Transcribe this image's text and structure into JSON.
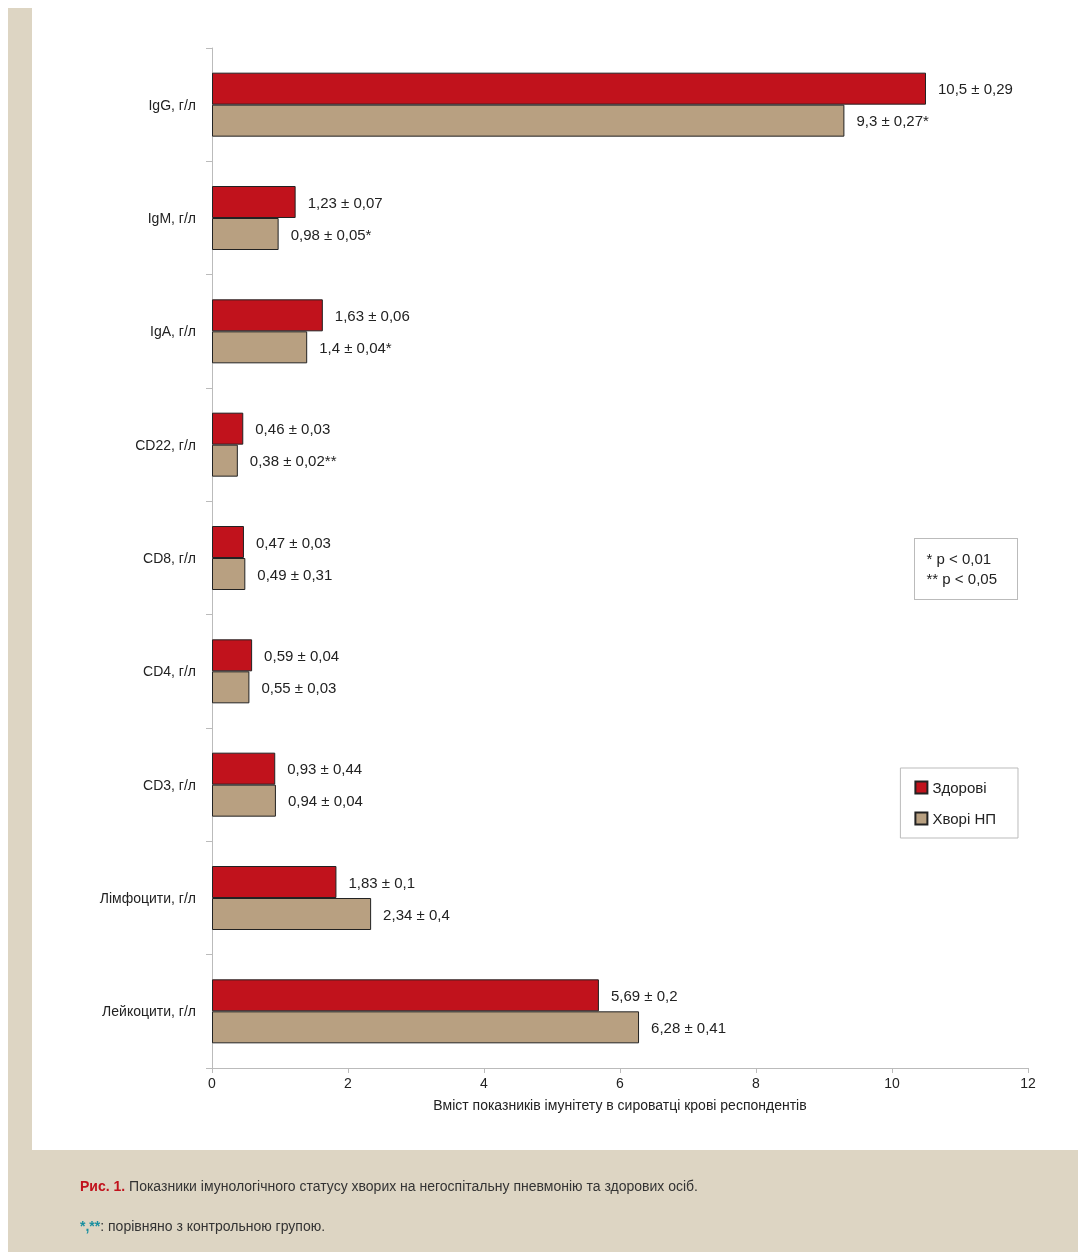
{
  "chart_data": {
    "type": "bar",
    "orientation": "horizontal",
    "categories": [
      "IgG, г/л",
      "IgM, г/л",
      "IgA, г/л",
      "CD22, г/л",
      "CD8, г/л",
      "CD4, г/л",
      "CD3, г/л",
      "Лімфоцити, г/л",
      "Лейкоцити, г/л"
    ],
    "series": [
      {
        "name": "Здорові",
        "color": "#c1121c",
        "values": [
          10.5,
          1.23,
          1.63,
          0.46,
          0.47,
          0.59,
          0.93,
          1.83,
          5.69
        ],
        "value_labels": [
          "10,5 ± 0,29",
          "1,23 ± 0,07",
          "1,63 ± 0,06",
          "0,46 ± 0,03",
          "0,47 ± 0,03",
          "0,59 ± 0,04",
          "0,93 ± 0,44",
          "1,83 ± 0,1",
          "5,69 ± 0,2"
        ]
      },
      {
        "name": "Хворі НП",
        "color": "#b8a081",
        "values": [
          9.3,
          0.98,
          1.4,
          0.38,
          0.49,
          0.55,
          0.94,
          2.34,
          6.28
        ],
        "value_labels": [
          "9,3 ± 0,27*",
          "0,98 ± 0,05*",
          "1,4 ± 0,04*",
          "0,38 ± 0,02**",
          "0,49 ± 0,31",
          "0,55 ± 0,03",
          "0,94 ± 0,04",
          "2,34 ± 0,4",
          "6,28 ± 0,41"
        ]
      }
    ],
    "xlabel": "Вміст показників імунітету в сироватці крові респондентів",
    "xlim": [
      0,
      12
    ],
    "xticks": [
      0,
      2,
      4,
      6,
      8,
      10,
      12
    ],
    "grid": false,
    "legend": "right",
    "annotations": [
      "* p < 0,01",
      "** p < 0,05",
      "Рис. 1.",
      "Показники імунологічного статусу хворих на негоспітальну пневмонію та здорових осіб.",
      "*,**",
      ": порівняно з контрольною групою."
    ]
  }
}
